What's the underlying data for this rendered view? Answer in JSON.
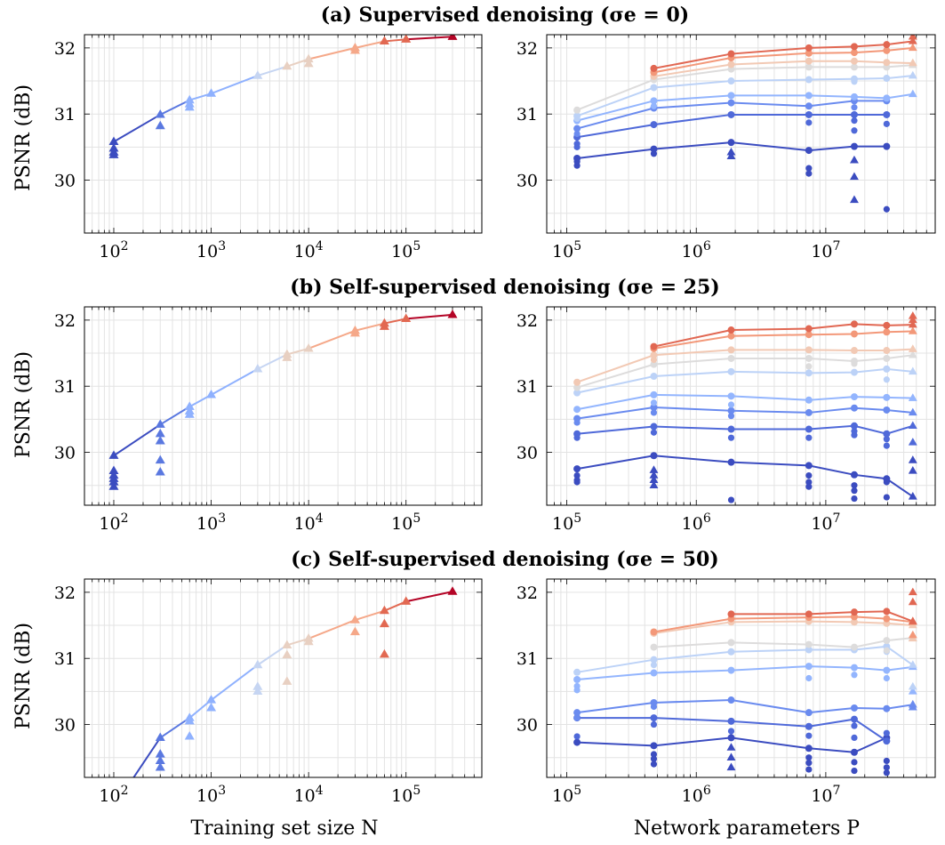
{
  "chart_data": [
    {
      "id": "a-N",
      "type": "line",
      "title": "(a) Supervised denoising (σe = 0)",
      "xlabel": "",
      "ylabel": "PSNR (dB)",
      "xscale": "log",
      "xlim": [
        50,
        600000
      ],
      "ylim": [
        29.2,
        32.2
      ],
      "xticks": [
        "10^2",
        "10^3",
        "10^4",
        "10^5"
      ],
      "yticks": [
        30,
        31,
        32
      ],
      "grid": true,
      "marker": "triangle",
      "line": {
        "x": [
          100,
          300,
          600,
          1000,
          3000,
          6000,
          10000,
          30000,
          60000,
          100000,
          300000
        ],
        "y": [
          30.58,
          30.99,
          31.21,
          31.31,
          31.58,
          31.72,
          31.83,
          32.0,
          32.1,
          32.13,
          32.17
        ]
      },
      "extra_points": {
        "x": [
          100,
          100,
          100,
          300,
          600,
          600,
          10000,
          30000
        ],
        "y": [
          30.48,
          30.42,
          30.38,
          30.82,
          31.15,
          31.1,
          31.76,
          31.96
        ]
      }
    },
    {
      "id": "a-P",
      "type": "line",
      "title": "",
      "xlabel": "",
      "ylabel": "",
      "xscale": "log",
      "xlim": [
        70000,
        70000000
      ],
      "ylim": [
        29.2,
        32.2
      ],
      "xticks": [
        "10^5",
        "10^6",
        "10^7"
      ],
      "yticks": [
        30,
        31,
        32
      ],
      "grid": true,
      "x": [
        120000,
        470000,
        1860000,
        7400000,
        16600000,
        29500000,
        47000000
      ],
      "series": [
        {
          "values": [
            30.33,
            30.47,
            30.57,
            30.45,
            30.51,
            30.51,
            null
          ],
          "extra": [
            [
              120000,
              30.22
            ],
            [
              120000,
              30.28
            ],
            [
              470000,
              30.4
            ],
            [
              1860000,
              30.42
            ],
            [
              1860000,
              30.36
            ],
            [
              7400000,
              30.18
            ],
            [
              7400000,
              30.1
            ],
            [
              16600000,
              30.05
            ],
            [
              16600000,
              29.7
            ],
            [
              16600000,
              30.3
            ],
            [
              29500000,
              29.56
            ]
          ]
        },
        {
          "values": [
            30.65,
            30.84,
            30.99,
            30.99,
            30.99,
            30.99,
            null
          ],
          "extra": [
            [
              120000,
              30.55
            ],
            [
              120000,
              30.5
            ],
            [
              7400000,
              30.87
            ],
            [
              16600000,
              30.75
            ],
            [
              16600000,
              30.9
            ],
            [
              29500000,
              30.85
            ]
          ]
        },
        {
          "values": [
            30.78,
            31.09,
            31.17,
            31.12,
            31.2,
            31.2,
            null
          ],
          "extra": [
            [
              120000,
              30.7
            ],
            [
              16600000,
              31.1
            ]
          ]
        },
        {
          "values": [
            30.9,
            31.2,
            31.28,
            31.28,
            31.26,
            31.24,
            31.3
          ],
          "extra": [
            [
              470000,
              31.12
            ]
          ]
        },
        {
          "values": [
            30.97,
            31.4,
            31.5,
            31.52,
            31.53,
            31.54,
            31.58
          ],
          "extra": [
            [
              120000,
              30.93
            ],
            [
              16600000,
              31.49
            ]
          ]
        },
        {
          "values": [
            31.06,
            31.52,
            31.68,
            31.71,
            31.71,
            31.71,
            31.74
          ],
          "extra": []
        },
        {
          "values": [
            null,
            31.57,
            31.75,
            31.8,
            31.8,
            31.78,
            31.77
          ],
          "extra": []
        },
        {
          "values": [
            null,
            31.63,
            31.85,
            31.92,
            31.93,
            31.96,
            32.0
          ],
          "extra": []
        },
        {
          "values": [
            null,
            31.69,
            31.91,
            32.0,
            32.02,
            32.05,
            32.1
          ],
          "extra": [
            [
              47000000,
              32.17
            ]
          ]
        }
      ]
    },
    {
      "id": "b-N",
      "type": "line",
      "title": "(b) Self-supervised denoising (σe = 25)",
      "xlabel": "",
      "ylabel": "PSNR (dB)",
      "xscale": "log",
      "xlim": [
        50,
        600000
      ],
      "ylim": [
        29.2,
        32.2
      ],
      "xticks": [
        "10^2",
        "10^3",
        "10^4",
        "10^5"
      ],
      "yticks": [
        30,
        31,
        32
      ],
      "grid": true,
      "marker": "triangle",
      "line": {
        "x": [
          100,
          300,
          600,
          1000,
          3000,
          6000,
          10000,
          30000,
          60000,
          100000,
          300000
        ],
        "y": [
          29.95,
          30.42,
          30.69,
          30.87,
          31.26,
          31.48,
          31.57,
          31.84,
          31.95,
          32.02,
          32.08
        ]
      },
      "extra_points": {
        "x": [
          100,
          100,
          100,
          100,
          100,
          300,
          300,
          300,
          300,
          600,
          600,
          6000,
          30000,
          60000
        ],
        "y": [
          29.72,
          29.65,
          29.6,
          29.55,
          29.48,
          30.28,
          30.17,
          29.88,
          29.7,
          30.62,
          30.57,
          31.43,
          31.8,
          31.9
        ]
      }
    },
    {
      "id": "b-P",
      "type": "line",
      "title": "",
      "xlabel": "",
      "ylabel": "",
      "xscale": "log",
      "xlim": [
        70000,
        70000000
      ],
      "ylim": [
        29.2,
        32.2
      ],
      "xticks": [
        "10^5",
        "10^6",
        "10^7"
      ],
      "yticks": [
        30,
        31,
        32
      ],
      "grid": true,
      "x": [
        120000,
        470000,
        1860000,
        7400000,
        16600000,
        29500000,
        47000000
      ],
      "series": [
        {
          "values": [
            29.75,
            29.95,
            29.85,
            29.8,
            29.66,
            29.6,
            29.33
          ],
          "extra": [
            [
              120000,
              29.65
            ],
            [
              120000,
              29.58
            ],
            [
              120000,
              29.55
            ],
            [
              470000,
              29.73
            ],
            [
              470000,
              29.65
            ],
            [
              470000,
              29.58
            ],
            [
              470000,
              29.5
            ],
            [
              1860000,
              29.28
            ],
            [
              7400000,
              29.65
            ],
            [
              7400000,
              29.55
            ],
            [
              7400000,
              29.48
            ],
            [
              16600000,
              29.5
            ],
            [
              16600000,
              29.42
            ],
            [
              16600000,
              29.3
            ],
            [
              29500000,
              29.55
            ],
            [
              29500000,
              29.32
            ],
            [
              47000000,
              29.88
            ],
            [
              47000000,
              29.72
            ]
          ]
        },
        {
          "values": [
            30.28,
            30.39,
            30.35,
            30.35,
            30.4,
            30.28,
            30.4
          ],
          "extra": [
            [
              120000,
              30.22
            ],
            [
              470000,
              30.3
            ],
            [
              1860000,
              30.22
            ],
            [
              7400000,
              30.22
            ],
            [
              16600000,
              30.32
            ],
            [
              16600000,
              30.26
            ],
            [
              29500000,
              30.2
            ],
            [
              29500000,
              30.1
            ],
            [
              47000000,
              30.15
            ]
          ]
        },
        {
          "values": [
            30.51,
            30.68,
            30.63,
            30.6,
            30.67,
            30.64,
            30.6
          ],
          "extra": [
            [
              120000,
              30.45
            ],
            [
              470000,
              30.6
            ],
            [
              1860000,
              30.55
            ]
          ]
        },
        {
          "values": [
            30.65,
            30.87,
            30.85,
            30.79,
            30.84,
            30.83,
            30.82
          ],
          "extra": [
            [
              470000,
              30.75
            ],
            [
              1860000,
              30.72
            ]
          ]
        },
        {
          "values": [
            30.9,
            31.15,
            31.22,
            31.2,
            31.21,
            31.26,
            31.22
          ],
          "extra": [
            [
              29500000,
              31.1
            ]
          ]
        },
        {
          "values": [
            30.98,
            31.33,
            31.42,
            31.42,
            31.38,
            31.42,
            31.47
          ],
          "extra": [
            [
              7400000,
              31.3
            ],
            [
              16600000,
              31.34
            ]
          ]
        },
        {
          "values": [
            31.06,
            31.47,
            31.55,
            31.55,
            31.54,
            31.54,
            31.56
          ],
          "extra": [
            [
              470000,
              31.4
            ]
          ]
        },
        {
          "values": [
            null,
            31.57,
            31.76,
            31.78,
            31.79,
            31.82,
            31.83
          ],
          "extra": []
        },
        {
          "values": [
            null,
            31.6,
            31.85,
            31.87,
            31.94,
            31.92,
            31.93
          ],
          "extra": [
            [
              47000000,
              32.06
            ],
            [
              47000000,
              32.0
            ]
          ]
        }
      ]
    },
    {
      "id": "c-N",
      "type": "line",
      "title": "(c) Self-supervised denoising (σe = 50)",
      "xlabel": "Training set size N",
      "ylabel": "PSNR (dB)",
      "xscale": "log",
      "xlim": [
        50,
        600000
      ],
      "ylim": [
        29.2,
        32.2
      ],
      "xticks": [
        "10^2",
        "10^3",
        "10^4",
        "10^5"
      ],
      "yticks": [
        30,
        31,
        32
      ],
      "grid": true,
      "marker": "triangle",
      "line": {
        "x": [
          100,
          300,
          600,
          1000,
          3000,
          6000,
          10000,
          30000,
          60000,
          100000,
          300000
        ],
        "y": [
          28.75,
          29.8,
          30.1,
          30.37,
          30.9,
          31.2,
          31.3,
          31.58,
          31.72,
          31.86,
          32.01
        ]
      },
      "extra_points": {
        "x": [
          300,
          300,
          300,
          600,
          600,
          1000,
          3000,
          3000,
          6000,
          6000,
          10000,
          30000,
          60000,
          60000
        ],
        "y": [
          29.55,
          29.45,
          29.35,
          30.05,
          29.82,
          30.25,
          30.57,
          30.5,
          31.05,
          30.65,
          31.25,
          31.4,
          31.52,
          31.06
        ]
      }
    },
    {
      "id": "c-P",
      "type": "line",
      "title": "",
      "xlabel": "Network parameters P",
      "ylabel": "",
      "xscale": "log",
      "xlim": [
        70000,
        70000000
      ],
      "ylim": [
        29.2,
        32.2
      ],
      "xticks": [
        "10^5",
        "10^6",
        "10^7"
      ],
      "yticks": [
        30,
        31,
        32
      ],
      "grid": true,
      "x": [
        120000,
        470000,
        1860000,
        7400000,
        16600000,
        29500000,
        47000000
      ],
      "series": [
        {
          "values": [
            29.73,
            29.68,
            29.8,
            29.64,
            29.58,
            29.8,
            null
          ],
          "extra": [
            [
              470000,
              29.55
            ],
            [
              470000,
              29.48
            ],
            [
              470000,
              29.4
            ],
            [
              1860000,
              29.65
            ],
            [
              1860000,
              29.5
            ],
            [
              1860000,
              29.35
            ],
            [
              7400000,
              29.5
            ],
            [
              7400000,
              29.42
            ],
            [
              7400000,
              29.32
            ],
            [
              16600000,
              29.43
            ],
            [
              16600000,
              29.3
            ],
            [
              29500000,
              29.45
            ],
            [
              29500000,
              29.35
            ],
            [
              29500000,
              29.27
            ]
          ]
        },
        {
          "values": [
            30.1,
            30.1,
            30.05,
            29.97,
            30.08,
            29.75,
            null
          ],
          "extra": [
            [
              470000,
              30.0
            ],
            [
              1860000,
              29.9
            ],
            [
              7400000,
              29.83
            ],
            [
              16600000,
              29.98
            ],
            [
              16600000,
              29.8
            ],
            [
              29500000,
              29.87
            ],
            [
              120000,
              29.82
            ]
          ]
        },
        {
          "values": [
            30.18,
            30.33,
            30.37,
            30.18,
            30.25,
            30.24,
            30.3
          ],
          "extra": [
            [
              120000,
              30.1
            ],
            [
              470000,
              30.27
            ],
            [
              47000000,
              30.26
            ]
          ]
        },
        {
          "values": [
            30.68,
            30.78,
            30.82,
            30.88,
            30.86,
            30.82,
            30.87
          ],
          "extra": [
            [
              120000,
              30.58
            ],
            [
              120000,
              30.52
            ],
            [
              7400000,
              30.7
            ],
            [
              16600000,
              30.75
            ],
            [
              29500000,
              30.7
            ],
            [
              47000000,
              30.5
            ]
          ]
        },
        {
          "values": [
            30.79,
            30.98,
            31.1,
            31.13,
            31.13,
            31.18,
            30.9
          ],
          "extra": [
            [
              470000,
              30.9
            ],
            [
              29500000,
              31.1
            ],
            [
              47000000,
              30.57
            ]
          ]
        },
        {
          "values": [
            null,
            31.17,
            31.24,
            31.21,
            31.17,
            31.27,
            31.31
          ],
          "extra": [
            [
              29500000,
              31.12
            ]
          ]
        },
        {
          "values": [
            null,
            31.38,
            31.55,
            31.56,
            31.55,
            31.53,
            31.5
          ],
          "extra": [
            [
              47000000,
              31.3
            ]
          ]
        },
        {
          "values": [
            null,
            31.4,
            31.6,
            31.62,
            31.63,
            31.6,
            31.55
          ],
          "extra": [
            [
              47000000,
              31.35
            ]
          ]
        },
        {
          "values": [
            null,
            null,
            31.67,
            31.67,
            31.7,
            31.71,
            31.56
          ],
          "extra": [
            [
              47000000,
              32.0
            ],
            [
              47000000,
              31.85
            ]
          ]
        }
      ]
    }
  ]
}
